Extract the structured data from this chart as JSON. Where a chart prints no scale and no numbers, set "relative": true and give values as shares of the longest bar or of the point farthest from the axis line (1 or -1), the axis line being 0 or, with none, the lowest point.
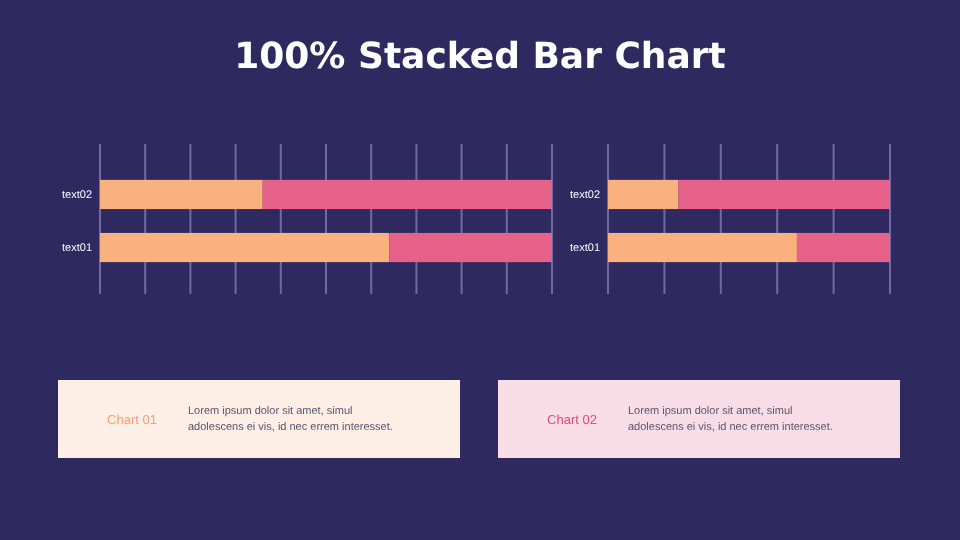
{
  "chart_data": [
    {
      "type": "bar",
      "title": "100% Stacked Bar Chart",
      "orientation": "horizontal",
      "stacked": true,
      "relative": true,
      "tick_labels": "y",
      "categories": [
        "text02",
        "text01"
      ],
      "series": [
        {
          "color": "#fbb07f",
          "values": [
            0.36,
            0.64
          ]
        },
        {
          "color": "#e6628a",
          "values": [
            0.64,
            0.36
          ]
        }
      ],
      "ref_lines": [
        {
          "axis": "x",
          "value": 0.1,
          "color": "#6f6aa3"
        },
        {
          "axis": "x",
          "value": 0.2,
          "color": "#6f6aa3"
        },
        {
          "axis": "x",
          "value": 0.3,
          "color": "#6f6aa3"
        },
        {
          "axis": "x",
          "value": 0.4,
          "color": "#6f6aa3"
        },
        {
          "axis": "x",
          "value": 0.5,
          "color": "#6f6aa3"
        },
        {
          "axis": "x",
          "value": 0.6,
          "color": "#6f6aa3"
        },
        {
          "axis": "x",
          "value": 0.7,
          "color": "#6f6aa3"
        },
        {
          "axis": "x",
          "value": 0.8,
          "color": "#6f6aa3"
        },
        {
          "axis": "x",
          "value": 0.9,
          "color": "#6f6aa3"
        }
      ]
    },
    {
      "type": "bar",
      "orientation": "horizontal",
      "stacked": true,
      "relative": true,
      "tick_labels": "y",
      "categories": [
        "text02",
        "text01"
      ],
      "series": [
        {
          "color": "#fbb07f",
          "values": [
            0.25,
            0.67
          ]
        },
        {
          "color": "#e6628a",
          "values": [
            0.75,
            0.33
          ]
        }
      ],
      "ref_lines": [
        {
          "axis": "x",
          "value": 0.2,
          "color": "#6f6aa3"
        },
        {
          "axis": "x",
          "value": 0.4,
          "color": "#6f6aa3"
        },
        {
          "axis": "x",
          "value": 0.6,
          "color": "#6f6aa3"
        },
        {
          "axis": "x",
          "value": 0.8,
          "color": "#6f6aa3"
        }
      ]
    },
    {
      "type": "other",
      "title": "Chart 01",
      "annotations": [
        "Lorem ipsum dolor sit amet, simul adolescens ei vis, id nec errem interesset."
      ]
    },
    {
      "type": "other",
      "title": "Chart 02",
      "annotations": [
        "Lorem ipsum dolor sit amet, simul adolescens ei vis, id nec errem interesset."
      ]
    }
  ]
}
